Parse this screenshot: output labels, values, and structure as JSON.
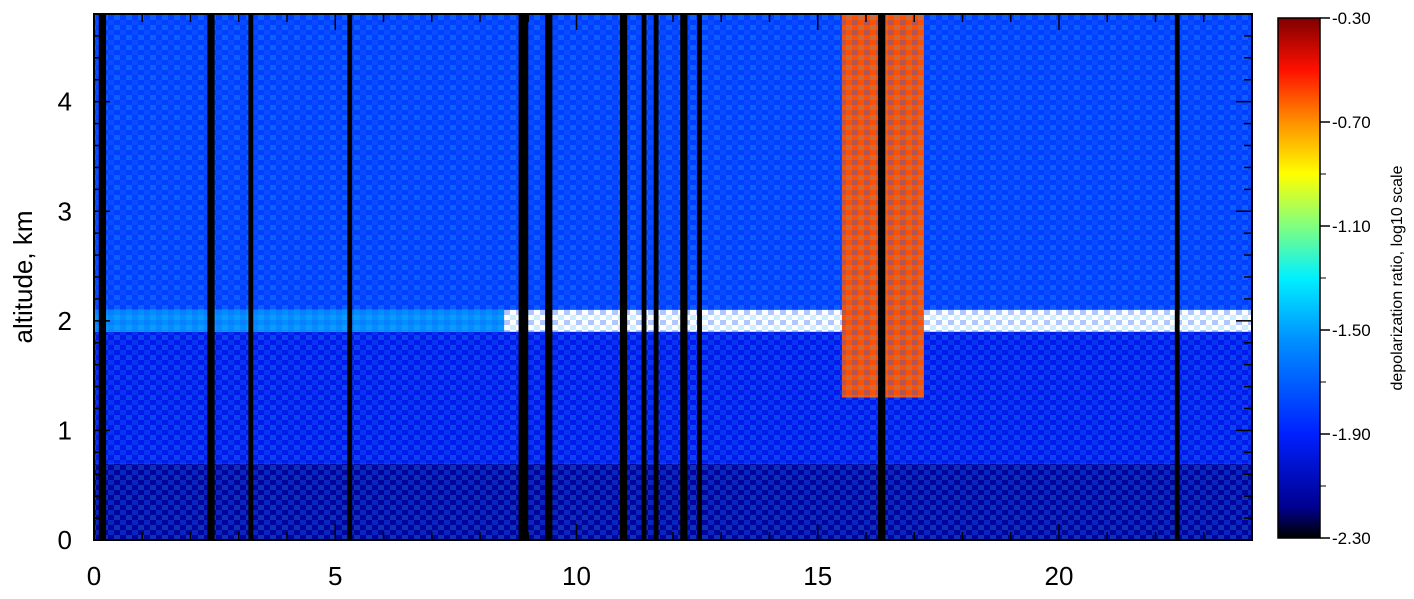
{
  "chart_data": {
    "type": "heatmap",
    "title": "",
    "xlabel": "",
    "ylabel": "altitude, km",
    "xlim": [
      0,
      24
    ],
    "ylim": [
      0,
      4.8
    ],
    "x_ticks": [
      0,
      5,
      10,
      15,
      20
    ],
    "y_ticks": [
      0,
      1,
      2,
      3,
      4
    ],
    "x_tick_labels": [
      "0",
      "5",
      "10",
      "15",
      "20"
    ],
    "y_tick_labels": [
      "0",
      "1",
      "2",
      "3",
      "4"
    ],
    "colorbar": {
      "label": "depolarization ratio, log10 scale",
      "range": [
        -2.3,
        -0.3
      ],
      "ticks": [
        -2.3,
        -1.9,
        -1.5,
        -1.1,
        -0.7,
        -0.3
      ],
      "tick_labels": [
        "-2.30",
        "-1.90",
        "-1.50",
        "-1.10",
        "-0.70",
        "-0.30"
      ],
      "colormap": "rainbow (black-blue-cyan-yellow-red-darkred)"
    },
    "description_regions": [
      {
        "x": [
          0,
          24
        ],
        "y": [
          0,
          0.7
        ],
        "value": -2.15
      },
      {
        "x": [
          0,
          24
        ],
        "y": [
          0.7,
          1.9
        ],
        "value": -1.95
      },
      {
        "x": [
          0,
          8.5
        ],
        "y": [
          1.9,
          2.1
        ],
        "value": -1.55
      },
      {
        "x": [
          0,
          24
        ],
        "y": [
          2.1,
          4.8
        ],
        "value": -1.8
      },
      {
        "x": [
          15.5,
          17.2
        ],
        "y": [
          1.3,
          4.8
        ],
        "value": -0.6
      }
    ],
    "missing_data_columns": [
      [
        0.1,
        0.25
      ],
      [
        2.35,
        2.5
      ],
      [
        3.2,
        3.3
      ],
      [
        5.25,
        5.35
      ],
      [
        8.8,
        9.0
      ],
      [
        9.35,
        9.5
      ],
      [
        10.9,
        11.05
      ],
      [
        11.35,
        11.45
      ],
      [
        11.6,
        11.7
      ],
      [
        12.15,
        12.3
      ],
      [
        12.5,
        12.6
      ],
      [
        16.25,
        16.4
      ],
      [
        22.4,
        22.5
      ]
    ]
  },
  "colors": {
    "background": "#ffffff",
    "axis": "#000000",
    "no_data": "#000000"
  }
}
